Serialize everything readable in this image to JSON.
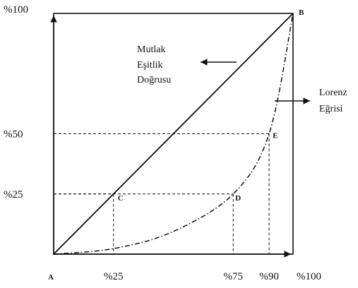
{
  "chart_data": {
    "type": "line",
    "x_ticks": [
      "%25",
      "%75",
      "%90",
      "%100"
    ],
    "y_ticks": [
      "%25",
      "%50",
      "%100"
    ],
    "xlim": [
      0,
      100
    ],
    "ylim": [
      0,
      100
    ],
    "grid": false,
    "series": [
      {
        "name": "Mutlak Eşitlik Doğrusu",
        "style": "solid",
        "x": [
          0,
          100
        ],
        "y": [
          0,
          100
        ]
      },
      {
        "name": "Lorenz Eğrisi",
        "style": "dash-dot",
        "x": [
          0,
          25,
          50,
          75,
          90,
          100
        ],
        "y": [
          0,
          2.3,
          9.4,
          25,
          50,
          100
        ]
      }
    ],
    "points": [
      {
        "label": "A",
        "x": 0,
        "y": 0
      },
      {
        "label": "B",
        "x": 100,
        "y": 100
      },
      {
        "label": "C",
        "x": 25,
        "y": 25
      },
      {
        "label": "D",
        "x": 75,
        "y": 25
      },
      {
        "label": "E",
        "x": 90,
        "y": 50
      }
    ],
    "annotations": [
      {
        "lines": [
          "Mutlak",
          "Eşitlik",
          "Doğrusu"
        ],
        "arrow": "left"
      },
      {
        "lines": [
          "Lorenz",
          "Eğrisi"
        ],
        "arrow": "right"
      }
    ],
    "colors": {
      "ink": "#111111",
      "background": "#ffffff"
    }
  }
}
